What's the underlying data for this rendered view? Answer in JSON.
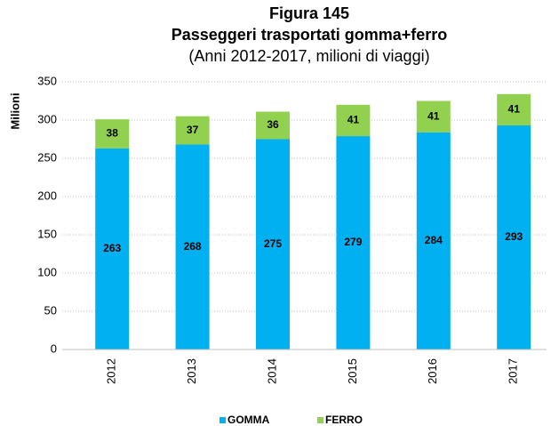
{
  "chart_data": {
    "type": "stacked_bar",
    "title": "Figura 145",
    "subtitle": "Passeggeri trasportati gomma+ferro",
    "note": "(Anni 2012-2017, milioni di viaggi)",
    "y_label": "Milioni",
    "categories": [
      "2012",
      "2013",
      "2014",
      "2015",
      "2016",
      "2017"
    ],
    "series": [
      {
        "name": "GOMMA",
        "color": "#00b0f0",
        "values": [
          263,
          268,
          275,
          279,
          284,
          293
        ]
      },
      {
        "name": "FERRO",
        "color": "#92d050",
        "values": [
          38,
          37,
          36,
          41,
          41,
          41
        ]
      }
    ],
    "ylim": [
      0,
      350
    ],
    "yticks": [
      0,
      50,
      100,
      150,
      200,
      250,
      300,
      350
    ],
    "grid": true,
    "legend": "bottom"
  }
}
